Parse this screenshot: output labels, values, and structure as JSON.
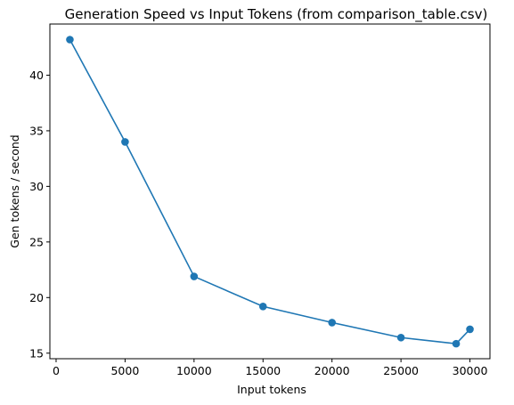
{
  "chart_data": {
    "type": "line",
    "title": "Generation Speed vs Input Tokens (from comparison_table.csv)",
    "xlabel": "Input tokens",
    "ylabel": "Gen tokens / second",
    "x": [
      1000,
      5000,
      10000,
      15000,
      20000,
      25000,
      29000,
      30000
    ],
    "series": [
      {
        "values": [
          43.2,
          34.0,
          21.9,
          19.2,
          17.75,
          16.4,
          15.85,
          17.15
        ],
        "color": "#1f77b4"
      }
    ],
    "xlim": [
      -450,
      31450
    ],
    "ylim": [
      14.5,
      44.6
    ],
    "xticks": [
      0,
      5000,
      10000,
      15000,
      20000,
      25000,
      30000
    ],
    "yticks": [
      15,
      20,
      25,
      30,
      35,
      40
    ],
    "grid": false,
    "marker": "circle"
  }
}
